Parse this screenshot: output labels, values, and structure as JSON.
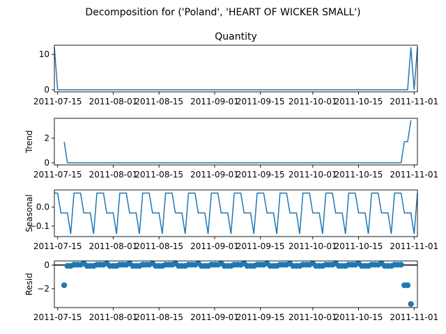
{
  "suptitle": "Decomposition for ('Poland', 'HEART OF WICKER SMALL')",
  "colors": {
    "line": "#1f77b4",
    "marker": "#1f77b4",
    "axis": "#000000",
    "zero_line": "#000000"
  },
  "chart_data": [
    {
      "type": "line",
      "title": "Quantity",
      "ylabel": "",
      "ylim": [
        -0.6,
        12.6
      ],
      "yticks": [
        0,
        10
      ],
      "xticks": [
        "2011-07-15",
        "2011-08-01",
        "2011-08-15",
        "2011-09-01",
        "2011-09-15",
        "2011-10-01",
        "2011-10-15",
        "2011-11-01"
      ],
      "x_start": "2011-07-14",
      "x_end": "2011-11-02",
      "series": [
        {
          "x": [
            "2011-07-14",
            "2011-07-15",
            "2011-10-30",
            "2011-10-31",
            "2011-11-01",
            "2011-11-02"
          ],
          "y": [
            12,
            0,
            0,
            12,
            0,
            12
          ]
        }
      ]
    },
    {
      "type": "line",
      "title": "",
      "ylabel": "Trend",
      "ylim": [
        -0.17,
        3.6
      ],
      "yticks": [
        0,
        2
      ],
      "xticks": [
        "2011-07-15",
        "2011-08-01",
        "2011-08-15",
        "2011-09-01",
        "2011-09-15",
        "2011-10-01",
        "2011-10-15",
        "2011-11-01"
      ],
      "x_start": "2011-07-14",
      "x_end": "2011-11-02",
      "series": [
        {
          "x": [
            "2011-07-17",
            "2011-07-18",
            "2011-10-28",
            "2011-10-29",
            "2011-10-30",
            "2011-10-31"
          ],
          "y": [
            1.71,
            0,
            0,
            1.71,
            1.71,
            3.43
          ]
        }
      ]
    },
    {
      "type": "line",
      "title": "",
      "ylabel": "Seasonal",
      "ylim": [
        -0.155,
        0.09
      ],
      "yticks": [
        0.0,
        -0.1
      ],
      "ytick_labels": [
        "0.0",
        "−0.1"
      ],
      "xticks": [
        "2011-07-15",
        "2011-08-01",
        "2011-08-15",
        "2011-09-01",
        "2011-09-15",
        "2011-10-01",
        "2011-10-15",
        "2011-11-01"
      ],
      "x_start": "2011-07-14",
      "x_end": "2011-11-02",
      "seasonal_pattern": [
        0.0735,
        0.0735,
        -0.0306,
        -0.0306,
        -0.0306,
        -0.1408,
        0.0735
      ],
      "seasonal_phase_start": "2011-07-14"
    },
    {
      "type": "scatter",
      "title": "",
      "ylabel": "Resid",
      "ylim": [
        -3.6,
        0.35
      ],
      "yticks": [
        0,
        -2
      ],
      "ytick_labels": [
        "0",
        "−2"
      ],
      "xticks": [
        "2011-07-15",
        "2011-08-01",
        "2011-08-15",
        "2011-09-01",
        "2011-09-15",
        "2011-10-01",
        "2011-10-15",
        "2011-11-01"
      ],
      "x_start": "2011-07-14",
      "x_end": "2011-11-02",
      "zero_line": true,
      "special_points": [
        {
          "x": "2011-07-17",
          "y": -1.71
        },
        {
          "x": "2011-10-29",
          "y": -1.71
        },
        {
          "x": "2011-10-30",
          "y": -1.71
        },
        {
          "x": "2011-10-31",
          "y": -3.3
        }
      ],
      "resid_pattern": [
        -0.0735,
        -0.0735,
        0.0306,
        0.0306,
        0.0306,
        0.1408,
        -0.0735
      ],
      "resid_range": [
        "2011-07-18",
        "2011-10-28"
      ]
    }
  ]
}
